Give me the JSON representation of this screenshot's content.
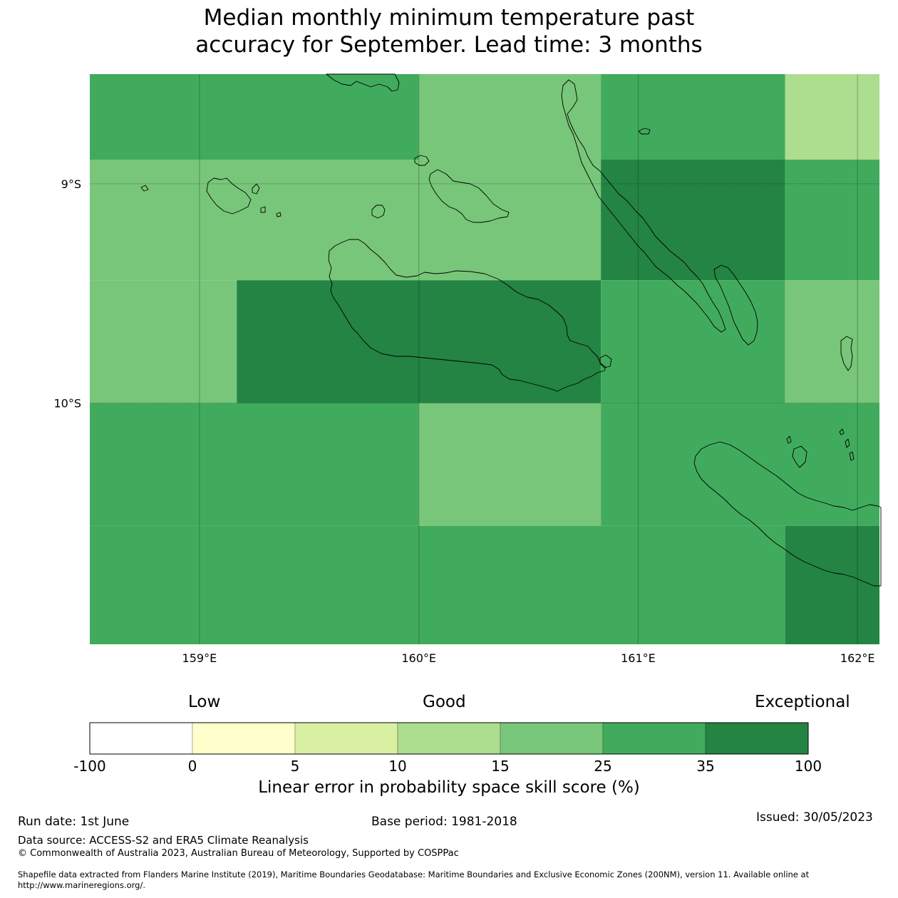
{
  "title": {
    "line1": "Median monthly minimum temperature past",
    "line2": "accuracy for September. Lead time: 3 months"
  },
  "map": {
    "lon_range": [
      158.5,
      162.1
    ],
    "lat_range": [
      -11.1,
      -8.5
    ],
    "lon_ticks": [
      {
        "value": 159,
        "label": "159°E"
      },
      {
        "value": 160,
        "label": "160°E"
      },
      {
        "value": 161,
        "label": "161°E"
      },
      {
        "value": 162,
        "label": "162°E"
      }
    ],
    "lat_ticks": [
      {
        "value": -9,
        "label": "9°S"
      },
      {
        "value": -10,
        "label": "10°S"
      }
    ],
    "grid": true
  },
  "colorbar": {
    "categories": [
      "Low",
      "Good",
      "Exceptional"
    ],
    "bins": [
      {
        "from": -100,
        "to": 0,
        "color": "#ffffff"
      },
      {
        "from": 0,
        "to": 5,
        "color": "#ffffcc"
      },
      {
        "from": 5,
        "to": 10,
        "color": "#d9f0a3"
      },
      {
        "from": 10,
        "to": 15,
        "color": "#addd8e"
      },
      {
        "from": 15,
        "to": 25,
        "color": "#78c679"
      },
      {
        "from": 25,
        "to": 35,
        "color": "#41ab5d"
      },
      {
        "from": 35,
        "to": 100,
        "color": "#238443"
      }
    ],
    "tick_labels": [
      "-100",
      "0",
      "5",
      "10",
      "15",
      "25",
      "35",
      "100"
    ],
    "label": "Linear error in probability space skill score (%)"
  },
  "footer": {
    "run_date": "Run date: 1st June",
    "base_period": "Base period: 1981-2018",
    "issued": "Issued: 30/05/2023",
    "data_source": "Data source: ACCESS-S2 and ERA5 Climate Reanalysis",
    "copyright": "© Commonwealth of Australia 2023, Australian Bureau of Meteorology, Supported by COSPPac",
    "shapefile_line1": "Shapefile data extracted from Flanders Marine Institute (2019), Maritime Boundaries Geodatabase: Maritime Boundaries and Exclusive Economic Zones (200NM), version 11. Available online at",
    "shapefile_line2": "http://www.marineregions.org/."
  },
  "grid_cells": [
    {
      "lon": [
        158.5,
        160.0
      ],
      "lat": [
        -8.89,
        -8.5
      ],
      "color": "#41ab5d"
    },
    {
      "lon": [
        160.0,
        160.83
      ],
      "lat": [
        -8.89,
        -8.5
      ],
      "color": "#78c679"
    },
    {
      "lon": [
        160.83,
        161.67
      ],
      "lat": [
        -8.89,
        -8.5
      ],
      "color": "#41ab5d"
    },
    {
      "lon": [
        161.67,
        162.1
      ],
      "lat": [
        -8.89,
        -8.5
      ],
      "color": "#addd8e"
    },
    {
      "lon": [
        158.5,
        160.83
      ],
      "lat": [
        -9.44,
        -8.89
      ],
      "color": "#78c679"
    },
    {
      "lon": [
        160.83,
        161.67
      ],
      "lat": [
        -9.44,
        -8.89
      ],
      "color": "#238443"
    },
    {
      "lon": [
        161.67,
        162.1
      ],
      "lat": [
        -9.44,
        -8.89
      ],
      "color": "#41ab5d"
    },
    {
      "lon": [
        158.5,
        159.17
      ],
      "lat": [
        -10.0,
        -9.44
      ],
      "color": "#78c679"
    },
    {
      "lon": [
        159.17,
        160.83
      ],
      "lat": [
        -10.0,
        -9.44
      ],
      "color": "#238443"
    },
    {
      "lon": [
        160.83,
        161.67
      ],
      "lat": [
        -10.0,
        -9.44
      ],
      "color": "#41ab5d"
    },
    {
      "lon": [
        161.67,
        162.1
      ],
      "lat": [
        -10.0,
        -9.44
      ],
      "color": "#78c679"
    },
    {
      "lon": [
        158.5,
        160.0
      ],
      "lat": [
        -10.56,
        -10.0
      ],
      "color": "#41ab5d"
    },
    {
      "lon": [
        160.0,
        160.83
      ],
      "lat": [
        -10.56,
        -10.0
      ],
      "color": "#78c679"
    },
    {
      "lon": [
        160.83,
        162.1
      ],
      "lat": [
        -10.56,
        -10.0
      ],
      "color": "#41ab5d"
    },
    {
      "lon": [
        158.5,
        161.67
      ],
      "lat": [
        -11.1,
        -10.56
      ],
      "color": "#41ab5d"
    },
    {
      "lon": [
        161.67,
        162.1
      ],
      "lat": [
        -11.1,
        -10.56
      ],
      "color": "#238443"
    }
  ]
}
